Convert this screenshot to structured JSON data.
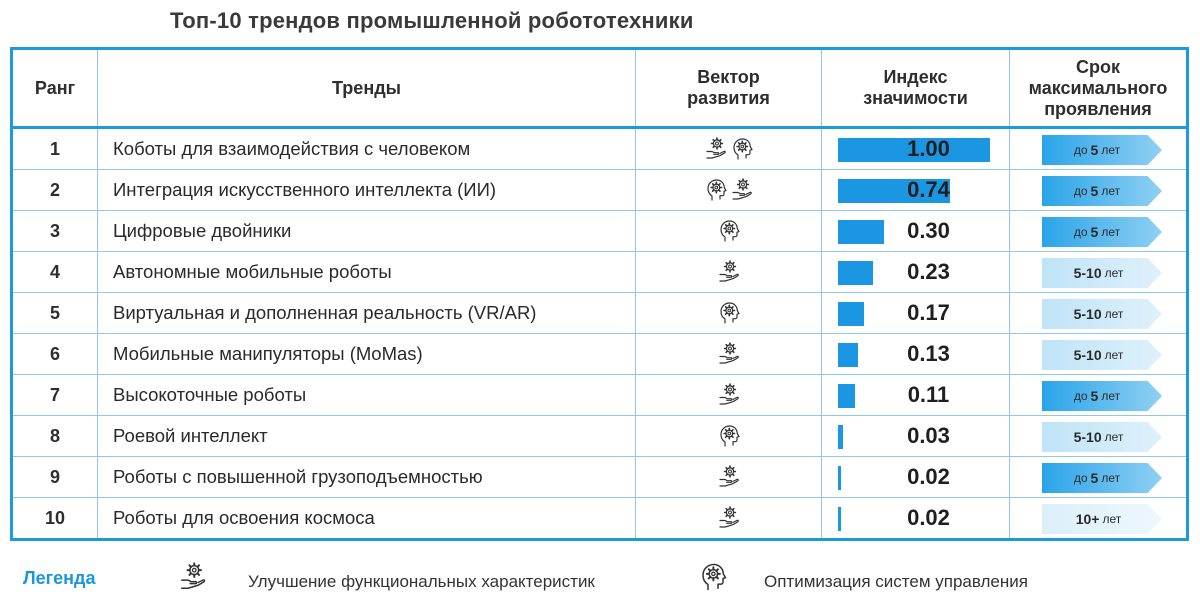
{
  "title": "Топ-10 трендов промышленной робототехники",
  "headers": {
    "rank": "Ранг",
    "trend": "Тренды",
    "vector_1": "Вектор",
    "vector_2": "развития",
    "index_1": "Индекс",
    "index_2": "значимости",
    "term_1": "Срок",
    "term_2": "максимального",
    "term_3": "проявления"
  },
  "rows": [
    {
      "rank": "1",
      "name": "Коботы для взаимодействия с человеком",
      "icons": [
        "hand-gear-icon",
        "head-gear-icon"
      ],
      "index": 1.0,
      "index_label": "1.00",
      "term_prefix": "до",
      "term_num": "5",
      "term_suffix": "лет",
      "term_class": "t5"
    },
    {
      "rank": "2",
      "name": "Интеграция искусственного интеллекта (ИИ)",
      "icons": [
        "head-gear-icon",
        "hand-gear-icon"
      ],
      "index": 0.74,
      "index_label": "0.74",
      "term_prefix": "до",
      "term_num": "5",
      "term_suffix": "лет",
      "term_class": "t5"
    },
    {
      "rank": "3",
      "name": "Цифровые двойники",
      "icons": [
        "head-gear-icon"
      ],
      "index": 0.3,
      "index_label": "0.30",
      "term_prefix": "до",
      "term_num": "5",
      "term_suffix": "лет",
      "term_class": "t5"
    },
    {
      "rank": "4",
      "name": "Автономные мобильные роботы",
      "icons": [
        "hand-gear-icon"
      ],
      "index": 0.23,
      "index_label": "0.23",
      "term_prefix": "",
      "term_num": "5-10",
      "term_suffix": "лет",
      "term_class": "t510"
    },
    {
      "rank": "5",
      "name": "Виртуальная и дополненная реальность (VR/AR)",
      "icons": [
        "head-gear-icon"
      ],
      "index": 0.17,
      "index_label": "0.17",
      "term_prefix": "",
      "term_num": "5-10",
      "term_suffix": "лет",
      "term_class": "t510"
    },
    {
      "rank": "6",
      "name": "Мобильные манипуляторы (MoMas)",
      "icons": [
        "hand-gear-icon"
      ],
      "index": 0.13,
      "index_label": "0.13",
      "term_prefix": "",
      "term_num": "5-10",
      "term_suffix": "лет",
      "term_class": "t510"
    },
    {
      "rank": "7",
      "name": "Высокоточные роботы",
      "icons": [
        "hand-gear-icon"
      ],
      "index": 0.11,
      "index_label": "0.11",
      "term_prefix": "до",
      "term_num": "5",
      "term_suffix": "лет",
      "term_class": "t5"
    },
    {
      "rank": "8",
      "name": "Роевой интеллект",
      "icons": [
        "head-gear-icon"
      ],
      "index": 0.03,
      "index_label": "0.03",
      "term_prefix": "",
      "term_num": "5-10",
      "term_suffix": "лет",
      "term_class": "t510"
    },
    {
      "rank": "9",
      "name": "Роботы с повышенной грузоподъемностью",
      "icons": [
        "hand-gear-icon"
      ],
      "index": 0.02,
      "index_label": "0.02",
      "term_prefix": "до",
      "term_num": "5",
      "term_suffix": "лет",
      "term_class": "t5"
    },
    {
      "rank": "10",
      "name": "Роботы для освоения космоса",
      "icons": [
        "hand-gear-icon"
      ],
      "index": 0.02,
      "index_label": "0.02",
      "term_prefix": "",
      "term_num": "10+",
      "term_suffix": "лет",
      "term_class": "t10"
    }
  ],
  "legend": {
    "title": "Легенда",
    "item1_icon": "hand-gear-icon",
    "item1_text": "Улучшение функциональных характеристик",
    "item2_icon": "head-gear-icon",
    "item2_text": "Оптимизация систем управления"
  },
  "colors": {
    "accent": "#1a96e2",
    "border": "#1a9be0"
  }
}
